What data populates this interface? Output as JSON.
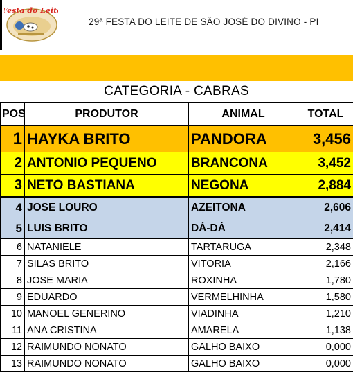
{
  "header": {
    "logo_title": "Festa do Leite",
    "title": "29ª FESTA DO LEITE DE SÃO JOSÉ DO DIVINO - PI"
  },
  "category_title": "CATEGORIA - CABRAS",
  "columns": {
    "pos": "POS",
    "producer": "PRODUTOR",
    "animal": "ANIMAL",
    "total": "TOTAL"
  },
  "rows": [
    {
      "pos": "1",
      "producer": "HAYKA BRITO",
      "animal": "PANDORA",
      "total": "3,456"
    },
    {
      "pos": "2",
      "producer": "ANTONIO PEQUENO",
      "animal": "BRANCONA",
      "total": "3,452"
    },
    {
      "pos": "3",
      "producer": "NETO BASTIANA",
      "animal": "NEGONA",
      "total": "2,884"
    },
    {
      "pos": "4",
      "producer": "JOSE LOURO",
      "animal": "AZEITONA",
      "total": "2,606"
    },
    {
      "pos": "5",
      "producer": "LUIS BRITO",
      "animal": "DÁ-DÁ",
      "total": "2,414"
    },
    {
      "pos": "6",
      "producer": "NATANIELE",
      "animal": "TARTARUGA",
      "total": "2,348"
    },
    {
      "pos": "7",
      "producer": "SILAS BRITO",
      "animal": "VITORIA",
      "total": "2,166"
    },
    {
      "pos": "8",
      "producer": "JOSE MARIA",
      "animal": "ROXINHA",
      "total": "1,780"
    },
    {
      "pos": "9",
      "producer": "EDUARDO",
      "animal": "VERMELHINHA",
      "total": "1,580"
    },
    {
      "pos": "10",
      "producer": "MANOEL GENERINO",
      "animal": "VIADINHA",
      "total": "1,210"
    },
    {
      "pos": "11",
      "producer": "ANA CRISTINA",
      "animal": "AMARELA",
      "total": "1,138"
    },
    {
      "pos": "12",
      "producer": "RAIMUNDO NONATO",
      "animal": "GALHO BAIXO",
      "total": "0,000"
    },
    {
      "pos": "13",
      "producer": "RAIMUNDO NONATO",
      "animal": "GALHO BAIXO",
      "total": "0,000"
    }
  ],
  "colors": {
    "band": "#ffc000",
    "first": "#ffc000",
    "second_third": "#ffff00",
    "fourth_fifth": "#c5d5e9",
    "logo_red": "#d7261e"
  }
}
